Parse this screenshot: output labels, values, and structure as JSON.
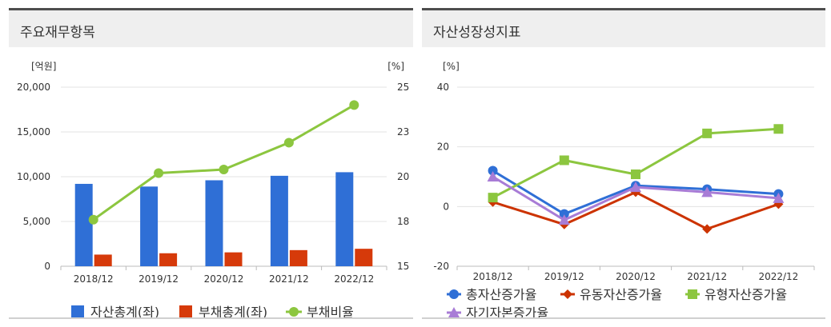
{
  "panels": {
    "left": {
      "title": "주요재무항목"
    },
    "right": {
      "title": "자산성장성지표"
    }
  },
  "chart_data": [
    {
      "type": "bar",
      "categories": [
        "2018/12",
        "2019/12",
        "2020/12",
        "2021/12",
        "2022/12"
      ],
      "y_left_unit": "[억원]",
      "y_right_unit": "[%]",
      "y_left_ticks": [
        "20,000",
        "15,000",
        "10,000",
        "5,000",
        "0"
      ],
      "y_right_ticks": [
        "25",
        "23",
        "20",
        "18",
        "15"
      ],
      "ylim_left": [
        0,
        20000
      ],
      "ylim_right": [
        15,
        25
      ],
      "grid": true,
      "legend_position": "bottom",
      "series": [
        {
          "name": "자산총계(좌)",
          "type": "bar",
          "axis": "left",
          "color": "#2f6fd6",
          "values": [
            9200,
            8900,
            9600,
            10100,
            10500
          ]
        },
        {
          "name": "부채총계(좌)",
          "type": "bar",
          "axis": "left",
          "color": "#d63a0a",
          "values": [
            1300,
            1450,
            1550,
            1800,
            1950
          ]
        },
        {
          "name": "부채비율",
          "type": "line",
          "axis": "right",
          "color": "#8cc63f",
          "values": [
            17.6,
            20.2,
            20.4,
            21.9,
            24.0
          ]
        }
      ]
    },
    {
      "type": "line",
      "categories": [
        "2018/12",
        "2019/12",
        "2020/12",
        "2021/12",
        "2022/12"
      ],
      "y_unit": "[%]",
      "y_ticks": [
        "40",
        "20",
        "0",
        "-20"
      ],
      "ylim": [
        -20,
        40
      ],
      "grid": true,
      "legend_position": "bottom",
      "series": [
        {
          "name": "총자산증가율",
          "marker": "circle",
          "color": "#2f6fd6",
          "values": [
            12.0,
            -2.5,
            7.0,
            5.8,
            4.2
          ]
        },
        {
          "name": "유동자산증가율",
          "marker": "diamond",
          "color": "#cc3300",
          "values": [
            1.5,
            -6.0,
            4.8,
            -7.5,
            0.8
          ]
        },
        {
          "name": "유형자산증가율",
          "marker": "square",
          "color": "#8cc63f",
          "values": [
            3.0,
            15.5,
            10.8,
            24.5,
            26.0
          ]
        },
        {
          "name": "자기자본증가율",
          "marker": "triangle",
          "color": "#a87cd6",
          "values": [
            10.0,
            -4.5,
            6.5,
            4.8,
            2.8
          ]
        }
      ]
    }
  ]
}
